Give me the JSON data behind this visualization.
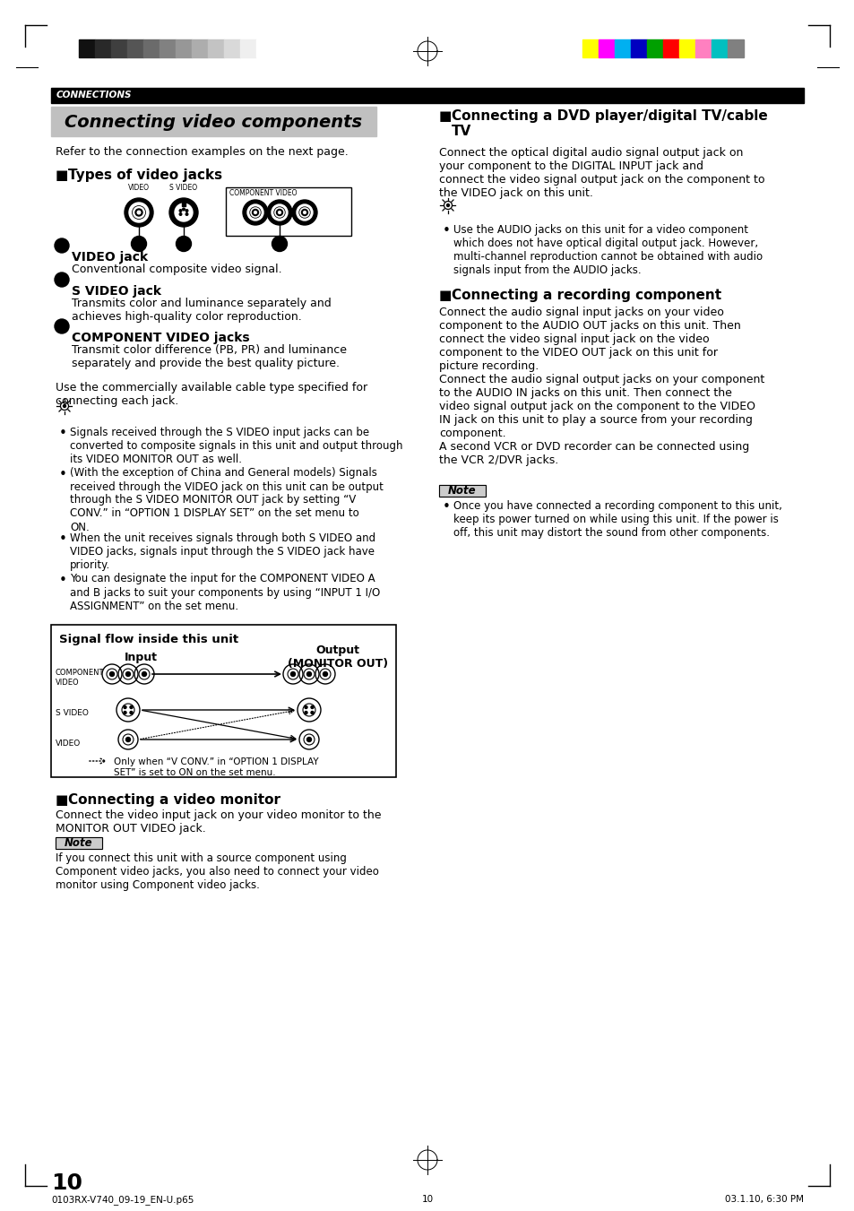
{
  "page_num": "10",
  "header_label": "CONNECTIONS",
  "title_box_text": "Connecting video components",
  "title_box_bg": "#c0c0c0",
  "color_bars_left": [
    "#111111",
    "#292929",
    "#3f3f3f",
    "#555555",
    "#6b6b6b",
    "#818181",
    "#979797",
    "#adadad",
    "#c3c3c3",
    "#d9d9d9",
    "#efefef",
    "#ffffff"
  ],
  "color_bars_right": [
    "#ffff00",
    "#ff00ff",
    "#00b0f0",
    "#0000c0",
    "#00a000",
    "#ff0000",
    "#ffff00",
    "#ff80c0",
    "#00c0c0",
    "#808080"
  ],
  "sections": {
    "refer_text": "Refer to the connection examples on the next page.",
    "types_header": "Types of video jacks",
    "jack1_title": "VIDEO jack",
    "jack1_body": "Conventional composite video signal.",
    "jack2_title": "S VIDEO jack",
    "jack2_body": "Transmits color and luminance separately and\nachieves high-quality color reproduction.",
    "jack3_title": "COMPONENT VIDEO jacks",
    "jack3_body": "Transmit color difference (PB, PR) and luminance\nseparately and provide the best quality picture.",
    "use_text": "Use the commercially available cable type specified for\nconnecting each jack.",
    "bullet1": "Signals received through the S VIDEO input jacks can be\nconverted to composite signals in this unit and output through\nits VIDEO MONITOR OUT as well.",
    "bullet2": "(With the exception of China and General models) Signals\nreceived through the VIDEO jack on this unit can be output\nthrough the S VIDEO MONITOR OUT jack by setting “V\nCONV.” in “OPTION 1 DISPLAY SET” on the set menu to\nON.",
    "bullet3": "When the unit receives signals through both S VIDEO and\nVIDEO jacks, signals input through the S VIDEO jack have\npriority.",
    "bullet4": "You can designate the input for the COMPONENT VIDEO A\nand B jacks to suit your components by using “INPUT 1 I/O\nASSIGNMENT” on the set menu.",
    "signal_flow_title": "Signal flow inside this unit",
    "signal_flow_input": "Input",
    "signal_flow_output": "Output\n(MONITOR OUT)",
    "signal_comp": "COMPONENT\nVIDEO",
    "signal_svideo": "S VIDEO",
    "signal_video": "VIDEO",
    "signal_note": "Only when “V CONV.” in “OPTION 1 DISPLAY\nSET” is set to ON on the set menu.",
    "monitor_header": "Connecting a video monitor",
    "monitor_body": "Connect the video input jack on your video monitor to the\nMONITOR OUT VIDEO jack.",
    "note_monitor": "If you connect this unit with a source component using\nComponent video jacks, you also need to connect your video\nmonitor using Component video jacks.",
    "dvd_header": "Connecting a DVD player/digital TV/cable\nTV",
    "dvd_body": "Connect the optical digital audio signal output jack on\nyour component to the DIGITAL INPUT jack and\nconnect the video signal output jack on the component to\nthe VIDEO jack on this unit.",
    "dvd_tip": "Use the AUDIO jacks on this unit for a video component\nwhich does not have optical digital output jack. However,\nmulti-channel reproduction cannot be obtained with audio\nsignals input from the AUDIO jacks.",
    "rec_header": "Connecting a recording component",
    "rec_body": "Connect the audio signal input jacks on your video\ncomponent to the AUDIO OUT jacks on this unit. Then\nconnect the video signal input jack on the video\ncomponent to the VIDEO OUT jack on this unit for\npicture recording.\nConnect the audio signal output jacks on your component\nto the AUDIO IN jacks on this unit. Then connect the\nvideo signal output jack on the component to the VIDEO\nIN jack on this unit to play a source from your recording\ncomponent.\nA second VCR or DVD recorder can be connected using\nthe VCR 2/DVR jacks.",
    "rec_note": "Once you have connected a recording component to this unit,\nkeep its power turned on while using this unit. If the power is\noff, this unit may distort the sound from other components.",
    "footer_left": "0103RX-V740_09-19_EN-U.p65",
    "footer_center": "10",
    "footer_right": "03.1.10, 6:30 PM"
  }
}
